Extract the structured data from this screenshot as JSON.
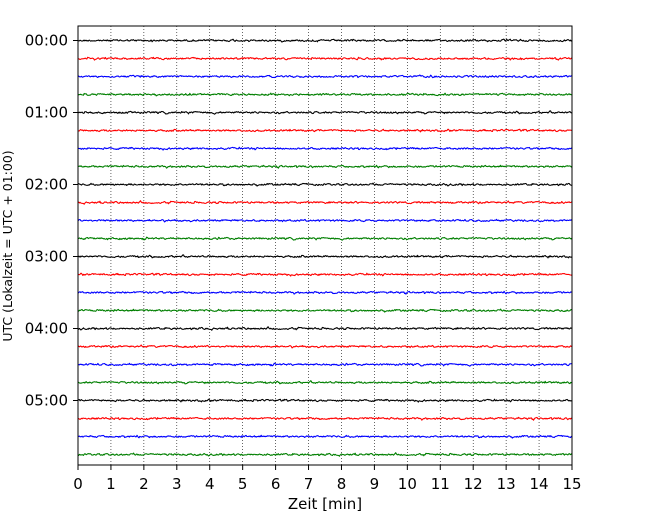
{
  "chart_data": {
    "type": "line",
    "title": "",
    "xlabel": "Zeit  [min]",
    "ylabel": "UTC (Lokalzeit = UTC + 01:00)",
    "xlim": [
      0,
      15
    ],
    "xticks": [
      "0",
      "1",
      "2",
      "3",
      "4",
      "5",
      "6",
      "7",
      "8",
      "9",
      "10",
      "11",
      "12",
      "13",
      "14",
      "15"
    ],
    "y_tick_labels": [
      "00:00",
      "01:00",
      "02:00",
      "03:00",
      "04:00",
      "05:00"
    ],
    "traces_per_hour": 4,
    "trace_start_times": [
      "00:00",
      "00:15",
      "00:30",
      "00:45",
      "01:00",
      "01:15",
      "01:30",
      "01:45",
      "02:00",
      "02:15",
      "02:30",
      "02:45",
      "03:00",
      "03:15",
      "03:30",
      "03:45",
      "04:00",
      "04:15",
      "04:30",
      "04:45",
      "05:00",
      "05:15",
      "05:30",
      "05:45"
    ],
    "trace_colors": [
      "#000000",
      "#ff0000",
      "#0000ff",
      "#007f00"
    ],
    "grid": "vertical dotted lines at each minute",
    "legend": "none"
  }
}
